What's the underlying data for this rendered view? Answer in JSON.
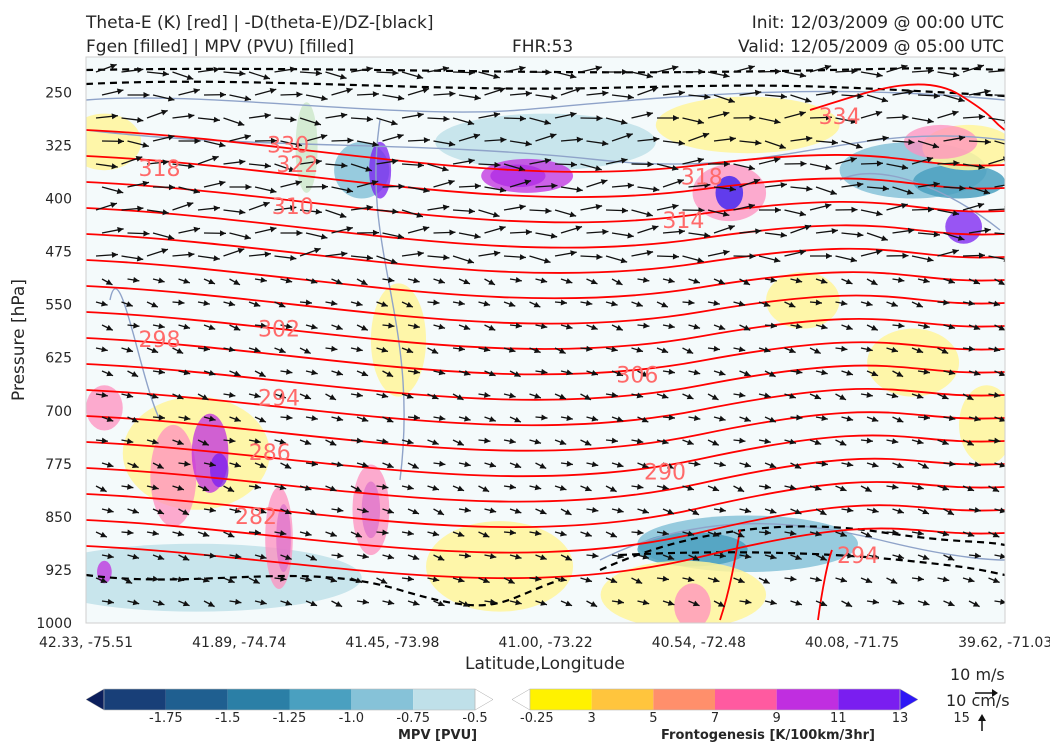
{
  "header": {
    "title_left_line1": "Theta-E (K) [red] | -D(theta-E)/DZ-[black]",
    "title_left_line2": "Fgen [filled] | MPV (PVU) [filled]",
    "title_center": "FHR:53",
    "title_right_line1": "Init: 12/03/2009 @ 00:00 UTC",
    "title_right_line2": "Valid: 12/05/2009 @ 05:00 UTC"
  },
  "colors": {
    "theta_e": "#ff0000",
    "stability": "#000000",
    "mpv_outline": "#8fa3c9",
    "axes_frame": "#cfcfcf"
  },
  "chart_data": {
    "type": "contour",
    "xlabel": "Latitude,Longitude",
    "ylabel": "Pressure [hPa]",
    "x_ticks": [
      "42.33, -75.51",
      "41.89, -74.74",
      "41.45, -73.98",
      "41.00, -73.22",
      "40.54, -72.48",
      "40.08, -71.75",
      "39.62, -71.03"
    ],
    "y_ticks": [
      250,
      325,
      400,
      475,
      550,
      625,
      700,
      775,
      850,
      925,
      1000
    ],
    "ylim": [
      1000,
      200
    ],
    "theta_e_contour_labels": [
      {
        "label": "334",
        "x_frac": 0.82,
        "p": 285
      },
      {
        "label": "330",
        "x_frac": 0.22,
        "p": 325
      },
      {
        "label": "322",
        "x_frac": 0.23,
        "p": 353
      },
      {
        "label": "318",
        "x_frac": 0.08,
        "p": 358
      },
      {
        "label": "318",
        "x_frac": 0.67,
        "p": 370
      },
      {
        "label": "310",
        "x_frac": 0.225,
        "p": 412
      },
      {
        "label": "314",
        "x_frac": 0.65,
        "p": 432
      },
      {
        "label": "302",
        "x_frac": 0.21,
        "p": 585
      },
      {
        "label": "298",
        "x_frac": 0.08,
        "p": 600
      },
      {
        "label": "306",
        "x_frac": 0.6,
        "p": 650
      },
      {
        "label": "294",
        "x_frac": 0.21,
        "p": 683
      },
      {
        "label": "286",
        "x_frac": 0.2,
        "p": 760
      },
      {
        "label": "290",
        "x_frac": 0.63,
        "p": 787
      },
      {
        "label": "282",
        "x_frac": 0.185,
        "p": 850
      },
      {
        "label": "294",
        "x_frac": 0.84,
        "p": 905
      }
    ],
    "colorbars": [
      {
        "label": "MPV [PVU]",
        "ticks": [
          "-1.75",
          "-1.5",
          "-1.25",
          "-1.0",
          "-0.75",
          "-0.5",
          "-0.25"
        ],
        "colors": [
          "#0c1f5c",
          "#183f78",
          "#1f5f90",
          "#2b7fa6",
          "#4aa0c0",
          "#86c2d8",
          "#bfe0e9",
          "#ffffff"
        ]
      },
      {
        "label": "Frontogenesis [K/100km/3hr]",
        "ticks": [
          "3",
          "5",
          "7",
          "9",
          "11",
          "13",
          "15"
        ],
        "colors": [
          "#ffffff",
          "#fff200",
          "#ffc53d",
          "#ff8f6b",
          "#ff5aa0",
          "#c02ee0",
          "#7a1ef0",
          "#2d17f5"
        ]
      }
    ],
    "vector_scale": [
      "10 m/s",
      "10 cm/s"
    ]
  }
}
